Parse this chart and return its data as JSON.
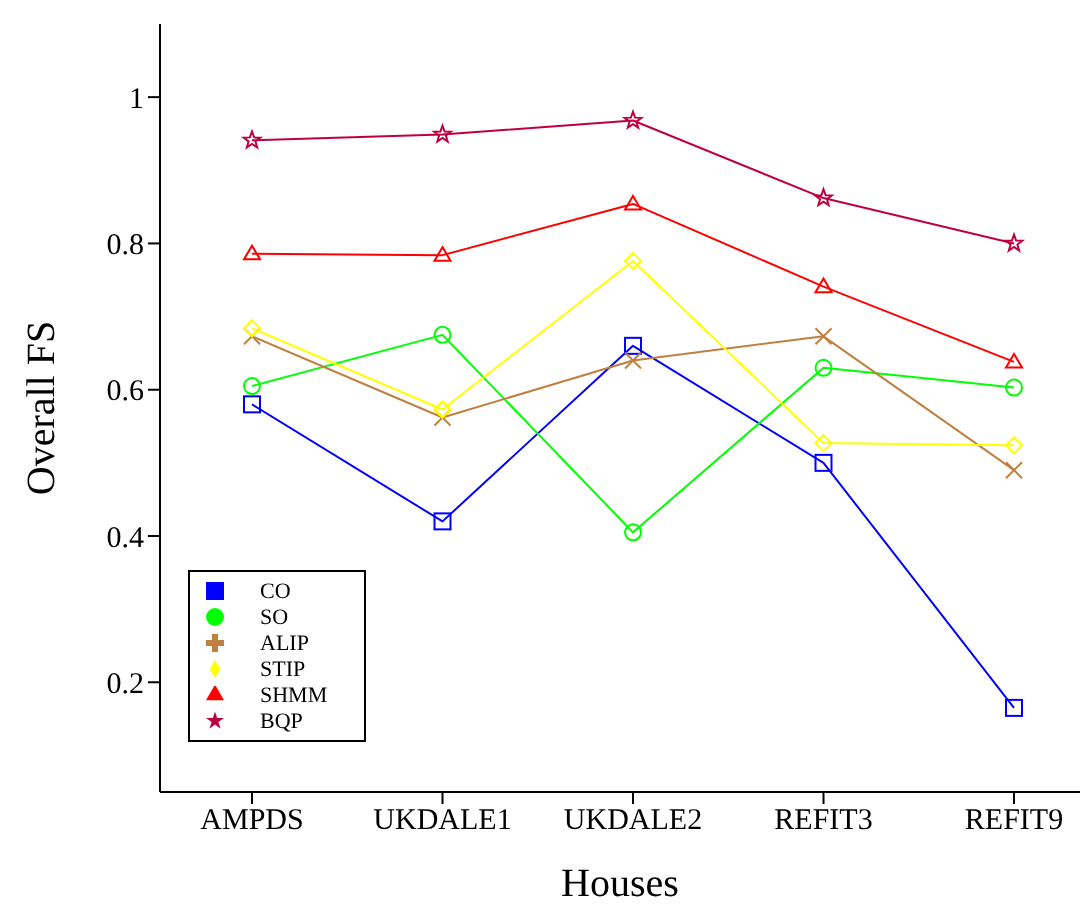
{
  "chart_data": {
    "type": "line",
    "xlabel": "Houses",
    "ylabel": "Overall FS",
    "categories": [
      "AMPDS",
      "UKDALE1",
      "UKDALE2",
      "REFIT3",
      "REFIT9"
    ],
    "ylim": [
      0.05,
      1.1
    ],
    "yticks": [
      0.2,
      0.4,
      0.6,
      0.8,
      1
    ],
    "grid": false,
    "legend": "bottom left",
    "line_style": "solid",
    "series": [
      {
        "name": "CO",
        "color": "#0000ff",
        "marker": "square",
        "values": [
          0.58,
          0.42,
          0.66,
          0.5,
          0.165
        ]
      },
      {
        "name": "SO",
        "color": "#00ff00",
        "marker": "circle",
        "values": [
          0.605,
          0.675,
          0.405,
          0.63,
          0.603
        ]
      },
      {
        "name": "ALIP",
        "color": "#bf8040",
        "marker": "cross",
        "values": [
          0.673,
          0.562,
          0.64,
          0.673,
          0.49
        ]
      },
      {
        "name": "STIP",
        "color": "#ffff00",
        "marker": "diamond",
        "values": [
          0.684,
          0.573,
          0.776,
          0.527,
          0.524
        ]
      },
      {
        "name": "SHMM",
        "color": "#ff0000",
        "marker": "triangle",
        "values": [
          0.786,
          0.784,
          0.854,
          0.741,
          0.638
        ]
      },
      {
        "name": "BQP",
        "color": "#bf0040",
        "marker": "star",
        "values": [
          0.941,
          0.949,
          0.968,
          0.862,
          0.8
        ]
      }
    ]
  }
}
